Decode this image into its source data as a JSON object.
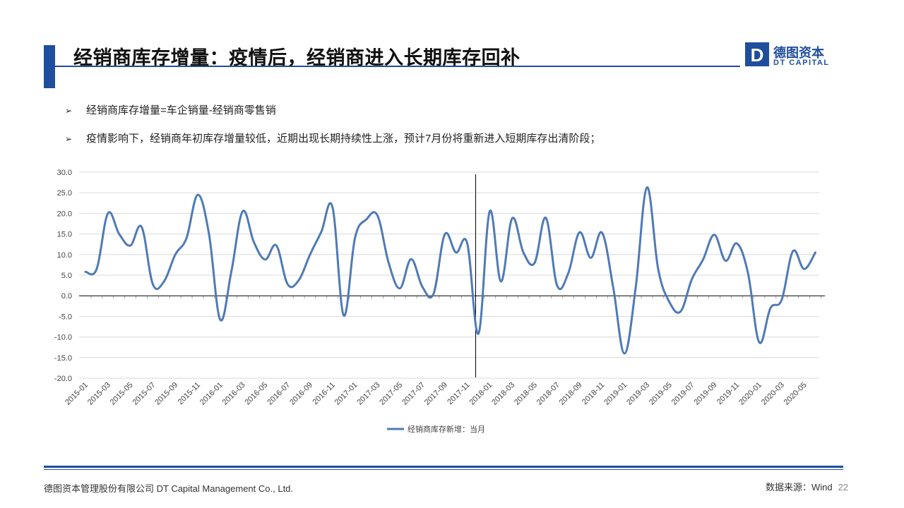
{
  "header": {
    "title": "经销商库存增量：疫情后，经销商进入长期库存回补",
    "logo_cn": "德图资本",
    "logo_en": "DT CAPITAL",
    "logo_letter": "D"
  },
  "bullets": [
    "经销商库存增量=车企销量-经销商零售销",
    "疫情影响下，经销商年初库存增量较低，近期出现长期持续性上涨，预计7月份将重新进入短期库存出清阶段；"
  ],
  "bullet_marker": "➢",
  "footer": {
    "company": "德图资本管理股份有限公司  DT Capital  Management  Co., Ltd.",
    "source": "数据来源：Wind",
    "page": "22"
  },
  "colors": {
    "brand": "#1f4e9c",
    "series": "#4f7ab5"
  },
  "chart_data": {
    "type": "line",
    "title": "",
    "xlabel": "",
    "ylabel": "",
    "ylim": [
      -20,
      30
    ],
    "y_ticks": [
      "30.0",
      "25.0",
      "20.0",
      "15.0",
      "10.0",
      "5.0",
      "0.0",
      "-5.0",
      "-10.0",
      "-15.0",
      "-20.0"
    ],
    "grid": true,
    "legend_position": "bottom",
    "x_tick_labels": [
      "2015-01",
      "2015-03",
      "2015-05",
      "2015-07",
      "2015-09",
      "2015-11",
      "2016-01",
      "2016-03",
      "2016-05",
      "2016-07",
      "2016-09",
      "2016-11",
      "2017-01",
      "2017-03",
      "2017-05",
      "2017-07",
      "2017-09",
      "2017-11",
      "2018-01",
      "2018-03",
      "2018-05",
      "2018-07",
      "2018-09",
      "2018-11",
      "2019-01",
      "2019-03",
      "2019-05",
      "2019-07",
      "2019-09",
      "2019-11",
      "2020-01",
      "2020-03",
      "2020-05"
    ],
    "vertical_marker": "2017-12",
    "x": [
      "2015-01",
      "2015-02",
      "2015-03",
      "2015-04",
      "2015-05",
      "2015-06",
      "2015-07",
      "2015-08",
      "2015-09",
      "2015-10",
      "2015-11",
      "2015-12",
      "2016-01",
      "2016-02",
      "2016-03",
      "2016-04",
      "2016-05",
      "2016-06",
      "2016-07",
      "2016-08",
      "2016-09",
      "2016-10",
      "2016-11",
      "2016-12",
      "2017-01",
      "2017-02",
      "2017-03",
      "2017-04",
      "2017-05",
      "2017-06",
      "2017-07",
      "2017-08",
      "2017-09",
      "2017-10",
      "2017-11",
      "2017-12",
      "2018-01",
      "2018-02",
      "2018-03",
      "2018-04",
      "2018-05",
      "2018-06",
      "2018-07",
      "2018-08",
      "2018-09",
      "2018-10",
      "2018-11",
      "2018-12",
      "2019-01",
      "2019-02",
      "2019-03",
      "2019-04",
      "2019-05",
      "2019-06",
      "2019-07",
      "2019-08",
      "2019-09",
      "2019-10",
      "2019-11",
      "2019-12",
      "2020-01",
      "2020-02",
      "2020-03",
      "2020-04",
      "2020-05",
      "2020-06"
    ],
    "series": [
      {
        "name": "经销商库存新增：当月",
        "values": [
          5.8,
          6.5,
          20.0,
          15.0,
          12.2,
          16.7,
          2.8,
          3.5,
          10.0,
          14.0,
          24.5,
          15.0,
          -5.8,
          6.0,
          20.5,
          13.0,
          8.8,
          12.2,
          2.8,
          3.8,
          10.0,
          15.5,
          21.5,
          -4.8,
          14.0,
          18.5,
          19.5,
          8.0,
          1.8,
          8.9,
          2.2,
          0.5,
          14.9,
          10.5,
          12.7,
          -9.2,
          20.5,
          3.5,
          18.8,
          10.5,
          8.0,
          18.9,
          2.5,
          5.5,
          15.4,
          9.2,
          15.3,
          2.0,
          -14.0,
          2.0,
          26.3,
          6.5,
          -1.5,
          -3.8,
          4.0,
          8.8,
          14.8,
          8.5,
          12.7,
          5.5,
          -11.3,
          -3.0,
          -1.0,
          10.8,
          6.5,
          10.5
        ]
      }
    ]
  }
}
